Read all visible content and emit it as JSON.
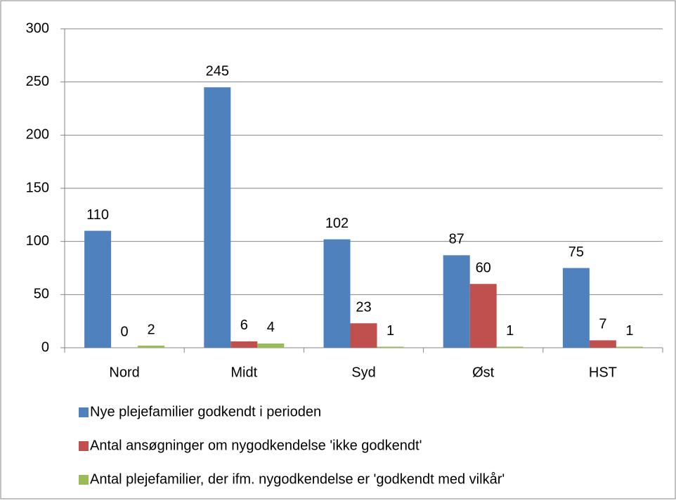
{
  "chart_data": {
    "type": "bar",
    "categories": [
      "Nord",
      "Midt",
      "Syd",
      "Øst",
      "HST"
    ],
    "series": [
      {
        "name": "Nye plejefamilier godkendt i perioden",
        "color": "#4f81bd",
        "values": [
          110,
          245,
          102,
          87,
          75
        ]
      },
      {
        "name": "Antal ansøgninger om nygodkendelse 'ikke godkendt'",
        "color": "#c0504d",
        "values": [
          0,
          6,
          23,
          60,
          7
        ]
      },
      {
        "name": "Antal plejefamilier, der ifm. nygodkendelse er 'godkendt med vilkår'",
        "color": "#9bbb59",
        "values": [
          2,
          4,
          1,
          1,
          1
        ]
      }
    ],
    "ylim": [
      0,
      300
    ],
    "yticks": [
      0,
      50,
      100,
      150,
      200,
      250,
      300
    ],
    "grid": true,
    "legend": "bottom"
  }
}
